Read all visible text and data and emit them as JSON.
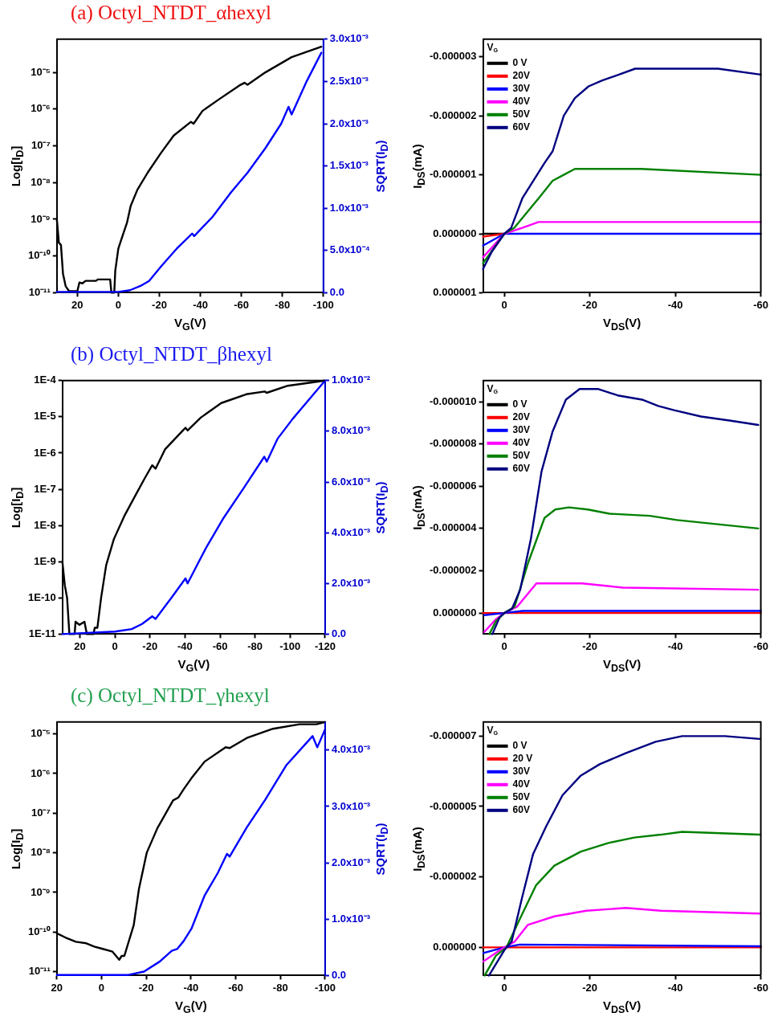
{
  "chart_data": [
    {
      "type": "line",
      "title": "(a)  Octyl_NTDT_αhexyl",
      "xlabel": "V$_{G}$(V)",
      "ylabel": "Log[I$_{D}$]",
      "y2label": "SQRT(I$_{D}$)",
      "log": "y",
      "marker": "none",
      "xlim": [
        30,
        -100
      ],
      "xticks": [
        20,
        0,
        -20,
        -40,
        -60,
        -80,
        -100
      ],
      "ylim": [
        1e-11,
        8e-05
      ],
      "yticks": [
        {
          "value": 1e-11,
          "label": "10⁻¹¹"
        },
        {
          "value": 1e-10,
          "label": "10⁻¹⁰"
        },
        {
          "value": 1e-09,
          "label": "10⁻⁹"
        },
        {
          "value": 1e-08,
          "label": "10⁻⁸"
        },
        {
          "value": 1e-07,
          "label": "10⁻⁷"
        },
        {
          "value": 1e-06,
          "label": "10⁻⁶"
        },
        {
          "value": 1e-05,
          "label": "10⁻⁵"
        }
      ],
      "y2lim": [
        0,
        0.003
      ],
      "y2ticks": [
        {
          "value": 0,
          "label": "0.0"
        },
        {
          "value": 0.0005,
          "label": "5.0x10⁻⁴"
        },
        {
          "value": 0.001,
          "label": "1.0x10⁻³"
        },
        {
          "value": 0.0015,
          "label": "1.5x10⁻³"
        },
        {
          "value": 0.002,
          "label": "2.0x10⁻³"
        },
        {
          "value": 0.0025,
          "label": "2.5x10⁻³"
        },
        {
          "value": 0.003,
          "label": "3.0x10⁻³"
        }
      ],
      "series": [
        {
          "color": "#000000",
          "x": [
            30,
            29,
            28,
            27,
            25.7,
            24,
            20,
            19,
            17.5,
            16,
            11,
            10,
            4,
            3.4,
            2,
            1.5,
            0,
            -2.3,
            -4.2,
            -6,
            -9.3,
            -14.4,
            -20.8,
            -27,
            -35.4,
            -36.7,
            -41,
            -48.8,
            -59,
            -61.5,
            -63,
            -71.7,
            -84.5,
            -99
          ],
          "values": [
            1e-09,
            2.3e-10,
            2e-10,
            3.3e-11,
            1.5e-11,
            1.1e-11,
            1.1e-11,
            1.9e-11,
            1.8e-11,
            2.1e-11,
            2.1e-11,
            2.3e-11,
            2.3e-11,
            1e-11,
            1e-11,
            4e-11,
            1.6e-10,
            3.9e-10,
            8e-10,
            2.3e-09,
            6.4e-09,
            1.9e-08,
            6.4e-08,
            1.9e-07,
            4.5e-07,
            4e-07,
            8.9e-07,
            1.8e-06,
            4.4e-06,
            5.2e-06,
            4.6e-06,
            1e-05,
            2.6e-05,
            5e-05
          ]
        },
        {
          "color": "#0000ff",
          "axis": "y2",
          "x": [
            30,
            0,
            -5.7,
            -10.8,
            -15,
            -20.8,
            -28.4,
            -36,
            -37,
            -46,
            -55,
            -63,
            -71.7,
            -79.4,
            -83,
            -84.5,
            -92,
            -99
          ],
          "values": [
            1e-05,
            1e-05,
            3e-05,
            8e-05,
            0.00014,
            0.00031,
            0.00052,
            0.0007,
            0.00067,
            0.0009,
            0.00119,
            0.00142,
            0.00171,
            0.002,
            0.0022,
            0.00211,
            0.00251,
            0.00284
          ]
        }
      ]
    },
    {
      "type": "line",
      "xlabel": "V$_{DS}$(V)",
      "ylabel": "I$_{DS}$(mA)",
      "legend": "top left",
      "legend_title": "V$_{G}$",
      "marker": "none",
      "xlim": [
        5,
        -60
      ],
      "xticks": [
        0,
        -20,
        -40,
        -60
      ],
      "ylim": [
        1e-06,
        -3.3e-06
      ],
      "yticks": [
        {
          "value": -3e-06,
          "label": "-0.000003"
        },
        {
          "value": -2e-06,
          "label": "-0.000002"
        },
        {
          "value": -1e-06,
          "label": "-0.000001"
        },
        {
          "value": 0,
          "label": "0.000000"
        },
        {
          "value": 1e-06,
          "label": "0.000001"
        }
      ],
      "series": [
        {
          "name": "0 V",
          "color": "#000000",
          "x": [
            5,
            0
          ],
          "values": [
            0,
            0
          ]
        },
        {
          "name": "20V",
          "color": "#ff0000",
          "x": [
            5,
            0
          ],
          "values": [
            5e-08,
            0
          ]
        },
        {
          "name": "30V",
          "color": "#0000ff",
          "x": [
            5,
            0,
            -60
          ],
          "values": [
            2e-07,
            0,
            0
          ]
        },
        {
          "name": "40V",
          "color": "#ff00ff",
          "x": [
            5,
            0,
            -4.2,
            -8,
            -32,
            -60
          ],
          "values": [
            4e-07,
            0,
            -1e-07,
            -2e-07,
            -2e-07,
            -2e-07
          ]
        },
        {
          "name": "50V",
          "color": "#008000",
          "x": [
            5,
            0,
            -2.3,
            -8,
            -11.3,
            -13.9,
            -16.5,
            -32,
            -60
          ],
          "values": [
            5e-07,
            0,
            -1e-07,
            -6e-07,
            -9e-07,
            -1e-06,
            -1.1e-06,
            -1.1e-06,
            -1e-06
          ]
        },
        {
          "name": "60V",
          "color": "#000080",
          "x": [
            5,
            2.9,
            0,
            -1.6,
            -4.2,
            -6.8,
            -9.4,
            -11.3,
            -13.9,
            -16.5,
            -19.7,
            -22.9,
            -26.8,
            -30.6,
            -35.2,
            -43.5,
            -50,
            -60
          ],
          "values": [
            6e-07,
            3e-07,
            0,
            -1e-07,
            -6e-07,
            -9e-07,
            -1.2e-06,
            -1.4e-06,
            -2e-06,
            -2.3e-06,
            -2.5e-06,
            -2.6e-06,
            -2.7e-06,
            -2.8e-06,
            -2.8e-06,
            -2.8e-06,
            -2.8e-06,
            -2.7e-06
          ]
        }
      ]
    },
    {
      "type": "line",
      "title": "(b) Octyl_NTDT_βhexyl",
      "xlabel": "V$_{G}$(V)",
      "ylabel": "Log[I$_{D}$]",
      "y2label": "SQRT(I$_{D}$)",
      "log": "y",
      "marker": "none",
      "xlim": [
        30,
        -120
      ],
      "xticks": [
        20,
        0,
        -20,
        -40,
        -60,
        -80,
        -100,
        -120
      ],
      "ylim": [
        1e-11,
        0.0001
      ],
      "yticks": [
        {
          "value": 1e-11,
          "label": "1E-11"
        },
        {
          "value": 1e-10,
          "label": "1E-10"
        },
        {
          "value": 1e-09,
          "label": "1E-9"
        },
        {
          "value": 1e-08,
          "label": "1E-8"
        },
        {
          "value": 1e-07,
          "label": "1E-7"
        },
        {
          "value": 1e-06,
          "label": "1E-6"
        },
        {
          "value": 1e-05,
          "label": "1E-5"
        },
        {
          "value": 0.0001,
          "label": "1E-4"
        }
      ],
      "y2lim": [
        0,
        0.01
      ],
      "y2ticks": [
        {
          "value": 0,
          "label": "0.0"
        },
        {
          "value": 0.002,
          "label": "2.0x10⁻³"
        },
        {
          "value": 0.004,
          "label": "4.0x10⁻³"
        },
        {
          "value": 0.006,
          "label": "6.0x10⁻³"
        },
        {
          "value": 0.008,
          "label": "8.0x10⁻³"
        },
        {
          "value": 0.01,
          "label": "1.0x10⁻²"
        }
      ],
      "series": [
        {
          "color": "#000000",
          "x": [
            30,
            28.6,
            27.3,
            26,
            23,
            22.5,
            20.3,
            17.4,
            16,
            12.3,
            11.5,
            10,
            7.9,
            5,
            0.6,
            -5.3,
            -11.1,
            -17,
            -21.3,
            -23.2,
            -28.6,
            -38.8,
            -40.3,
            -41.5,
            -49,
            -60.7,
            -75,
            -85.5,
            -86.7,
            -98.7,
            -120
          ],
          "values": [
            1e-09,
            2.2e-10,
            1e-10,
            1e-11,
            1e-11,
            2.2e-11,
            1.8e-11,
            2.2e-11,
            1e-11,
            1e-11,
            1.5e-11,
            1.5e-11,
            1e-10,
            8e-10,
            4.2e-09,
            1.8e-08,
            6e-08,
            2e-07,
            4.6e-07,
            3.7e-07,
            1.26e-06,
            4.2e-06,
            5e-06,
            4.2e-06,
            9.5e-06,
            2.4e-05,
            4.2e-05,
            5e-05,
            4.6e-05,
            7.2e-05,
            0.0001
          ]
        },
        {
          "color": "#0000ff",
          "axis": "y2",
          "x": [
            30,
            0,
            -9.6,
            -15.5,
            -21.3,
            -23.2,
            -33,
            -40.3,
            -41.5,
            -52,
            -62.2,
            -73.9,
            -85.3,
            -86.7,
            -92.8,
            -101.6,
            -120
          ],
          "values": [
            0,
            0.0001,
            0.0002,
            0.0004,
            0.0007,
            0.0006,
            0.0015,
            0.0022,
            0.002,
            0.0034,
            0.0046,
            0.0058,
            0.007,
            0.0068,
            0.0077,
            0.0085,
            0.01
          ]
        }
      ]
    },
    {
      "type": "line",
      "xlabel": "V$_{DS}$(V)",
      "ylabel": "I$_{DS}$(mA)",
      "legend": "top left",
      "legend_title": "V$_{G}$",
      "marker": "none",
      "xlim": [
        5,
        -60
      ],
      "xticks": [
        0,
        -20,
        -40,
        -60
      ],
      "ylim": [
        1e-06,
        -1.1e-05
      ],
      "yticks": [
        {
          "value": -1e-05,
          "label": "-0.000010"
        },
        {
          "value": -8e-06,
          "label": "-0.000008"
        },
        {
          "value": -6e-06,
          "label": "-0.000006"
        },
        {
          "value": -4e-06,
          "label": "-0.000004"
        },
        {
          "value": -2e-06,
          "label": "-0.000002"
        },
        {
          "value": 0,
          "label": "0.000000"
        }
      ],
      "series": [
        {
          "name": "0 V",
          "color": "#000000"
        },
        {
          "name": "20V",
          "color": "#ff0000",
          "x": [
            5,
            2,
            -2,
            -20,
            -40,
            -60
          ],
          "values": [
            0,
            0,
            0,
            0,
            0,
            0
          ]
        },
        {
          "name": "30V",
          "color": "#0000ff",
          "x": [
            4.7,
            0,
            -4.3,
            -60
          ],
          "values": [
            1e-07,
            0,
            -1e-07,
            -1e-07
          ]
        },
        {
          "name": "40V",
          "color": "#ff00ff",
          "x": [
            4.7,
            2,
            0,
            -3,
            -7.5,
            -10,
            -18.2,
            -27.7,
            -59.4
          ],
          "values": [
            9e-07,
            3e-07,
            0,
            -3e-07,
            -1.4e-06,
            -1.4e-06,
            -1.4e-06,
            -1.2e-06,
            -1.1e-06
          ]
        },
        {
          "name": "50V",
          "color": "#008000",
          "x": [
            3.5,
            2,
            0,
            -2.4,
            -5.6,
            -9.4,
            -11.9,
            -15.1,
            -19.5,
            -24.6,
            -34,
            -40.4,
            -59.4
          ],
          "values": [
            1e-06,
            4e-07,
            0,
            -3e-07,
            -2.4e-06,
            -4.5e-06,
            -4.9e-06,
            -5e-06,
            -4.9e-06,
            -4.7e-06,
            -4.6e-06,
            -4.4e-06,
            -4e-06
          ]
        },
        {
          "name": "60V",
          "color": "#000080",
          "x": [
            2.8,
            1.1,
            0,
            -1.8,
            -3.7,
            -6.2,
            -8.7,
            -11.3,
            -14.4,
            -17.6,
            -22,
            -26.5,
            -32.2,
            -36,
            -39.7,
            -46,
            -53,
            -59.4
          ],
          "values": [
            1e-06,
            2e-07,
            0,
            -2e-07,
            -1.1e-06,
            -3.5e-06,
            -6.7e-06,
            -8.6e-06,
            -1.01e-05,
            -1.06e-05,
            -1.06e-05,
            -1.03e-05,
            -1.01e-05,
            -9.8e-06,
            -9.6e-06,
            -9.3e-06,
            -9.1e-06,
            -8.9e-06
          ]
        }
      ]
    },
    {
      "type": "line",
      "title": "(c) Octyl_NTDT_γhexyl",
      "xlabel": "V$_{G}$(V)",
      "ylabel": "Log[I$_{D}$]",
      "y2label": "SQRT(I$_{D}$)",
      "log": "y",
      "marker": "none",
      "xlim": [
        20,
        -100
      ],
      "xticks": [
        20,
        0,
        -20,
        -40,
        -60,
        -80,
        -100
      ],
      "ylim": [
        8e-12,
        2e-05
      ],
      "yticks": [
        {
          "value": 1e-11,
          "label": "10⁻¹¹"
        },
        {
          "value": 1e-10,
          "label": "10⁻¹⁰"
        },
        {
          "value": 1e-09,
          "label": "10⁻⁹"
        },
        {
          "value": 1e-08,
          "label": "10⁻⁸"
        },
        {
          "value": 1e-07,
          "label": "10⁻⁷"
        },
        {
          "value": 1e-06,
          "label": "10⁻⁶"
        },
        {
          "value": 1e-05,
          "label": "10⁻⁵"
        }
      ],
      "y2lim": [
        0,
        0.0045
      ],
      "y2ticks": [
        {
          "value": 0,
          "label": "0.0"
        },
        {
          "value": 0.001,
          "label": "1.0x10⁻³"
        },
        {
          "value": 0.002,
          "label": "2.0x10⁻³"
        },
        {
          "value": 0.003,
          "label": "3.0x10⁻³"
        },
        {
          "value": 0.004,
          "label": "4.0x10⁻³"
        }
      ],
      "series": [
        {
          "color": "#000000",
          "x": [
            20,
            16.2,
            11.5,
            6.8,
            3.3,
            -0.2,
            -4.9,
            -7.9,
            -9,
            -10.2,
            -14.4,
            -16.7,
            -20.2,
            -25,
            -32,
            -34.4,
            -36.7,
            -40.2,
            -46.1,
            -55.5,
            -57.3,
            -65,
            -76.7,
            -88.5,
            -96.1,
            -100
          ],
          "values": [
            9.3e-11,
            7.3e-11,
            5.7e-11,
            5.2e-11,
            4.3e-11,
            3.8e-11,
            3.2e-11,
            2e-11,
            2.5e-11,
            2.5e-11,
            1.5e-10,
            1.2e-09,
            1e-08,
            4.2e-08,
            2.1e-07,
            2.5e-07,
            4e-07,
            7.6e-07,
            2e-06,
            4.6e-06,
            4.4e-06,
            7.9e-06,
            1.35e-05,
            1.75e-05,
            1.75e-05,
            2e-05
          ]
        },
        {
          "color": "#0000ff",
          "axis": "y2",
          "x": [
            20,
            -12,
            -19,
            -26.1,
            -31.4,
            -33.8,
            -36.7,
            -40.2,
            -46.1,
            -52,
            -56.1,
            -57.3,
            -65,
            -73.2,
            -82.6,
            -94.4,
            -96.5,
            -100
          ],
          "values": [
            1e-05,
            1e-05,
            7e-05,
            0.00025,
            0.00044,
            0.00047,
            0.00061,
            0.00083,
            0.00142,
            0.00182,
            0.00216,
            0.00211,
            0.00263,
            0.00312,
            0.00373,
            0.00425,
            0.00405,
            0.00437
          ]
        }
      ]
    },
    {
      "type": "line",
      "xlabel": "V$_{DS}$(V)",
      "ylabel": "I$_{DS}$(mA)",
      "legend": "top left",
      "legend_title": "V$_{G}$",
      "marker": "none",
      "xlim": [
        5,
        -60
      ],
      "xticks": [
        0,
        -20,
        -40,
        -60
      ],
      "ylim": [
        1e-06,
        -8e-06
      ],
      "yticks": [
        {
          "value": -7.5e-06,
          "label": "-0.000007"
        },
        {
          "value": -5e-06,
          "label": "-0.000005"
        },
        {
          "value": -2.5e-06,
          "label": "-0.000002"
        },
        {
          "value": 0,
          "label": "0.000000"
        }
      ],
      "series": [
        {
          "name": "0 V",
          "color": "#000000"
        },
        {
          "name": "20 V",
          "color": "#ff0000",
          "x": [
            5,
            0,
            -60
          ],
          "values": [
            0,
            0,
            0
          ]
        },
        {
          "name": "30V",
          "color": "#0000ff",
          "x": [
            4.9,
            0,
            -3.6,
            -60
          ],
          "values": [
            2e-07,
            0,
            -1e-07,
            -4e-08
          ]
        },
        {
          "name": "40V",
          "color": "#ff00ff",
          "x": [
            4.9,
            2,
            0,
            -2.4,
            -5.5,
            -11.7,
            -19.2,
            -28.5,
            -36.6,
            -59.7
          ],
          "values": [
            5e-07,
            2e-07,
            0,
            -2e-07,
            -8e-07,
            -1.1e-06,
            -1.3e-06,
            -1.4e-06,
            -1.3e-06,
            -1.2e-06
          ]
        },
        {
          "name": "50V",
          "color": "#008000",
          "x": [
            4.6,
            2,
            -0.5,
            -3.6,
            -7.4,
            -11.7,
            -17.9,
            -24.2,
            -30.4,
            -36.6,
            -41.6,
            -59.7
          ],
          "values": [
            1e-06,
            3e-07,
            0,
            -1e-06,
            -2.2e-06,
            -2.9e-06,
            -3.4e-06,
            -3.7e-06,
            -3.9e-06,
            -4e-06,
            -4.1e-06,
            -4e-06
          ]
        },
        {
          "name": "60V",
          "color": "#000080",
          "x": [
            3.6,
            2,
            0,
            -1.7,
            -4.2,
            -6.7,
            -9.8,
            -13.6,
            -17.9,
            -22.3,
            -28.5,
            -35.4,
            -41.6,
            -51.6,
            -59.7
          ],
          "values": [
            1e-06,
            6e-07,
            1e-07,
            -2e-07,
            -1.8e-06,
            -3.3e-06,
            -4.3e-06,
            -5.4e-06,
            -6.1e-06,
            -6.5e-06,
            -6.9e-06,
            -7.3e-06,
            -7.5e-06,
            -7.5e-06,
            -7.4e-06
          ]
        }
      ]
    }
  ]
}
